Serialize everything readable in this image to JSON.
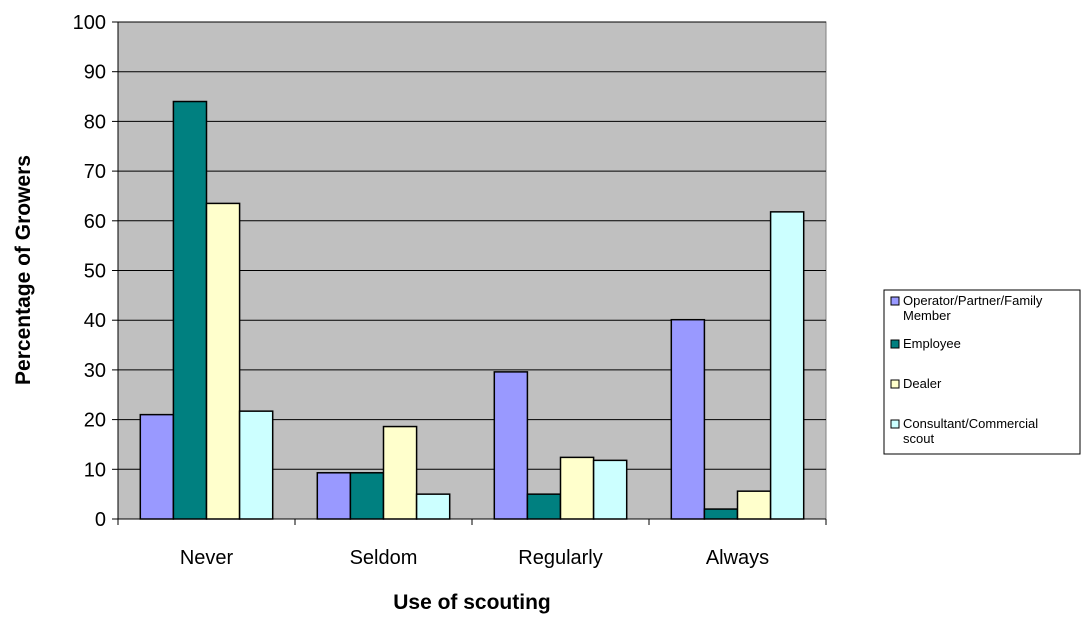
{
  "chart_data": {
    "type": "bar",
    "title": "",
    "xlabel": "Use of scouting",
    "ylabel": "Percentage of Growers",
    "ylim": [
      0,
      100
    ],
    "yticks": [
      0,
      10,
      20,
      30,
      40,
      50,
      60,
      70,
      80,
      90,
      100
    ],
    "grid": true,
    "legend_position": "right",
    "categories": [
      "Never",
      "Seldom",
      "Regularly",
      "Always"
    ],
    "series": [
      {
        "name": "Operator/Partner/Family Member",
        "color": "#9999ff",
        "values": [
          21,
          9.3,
          29.6,
          40.1
        ]
      },
      {
        "name": "Employee",
        "color": "#008080",
        "values": [
          84,
          9.3,
          5,
          2
        ]
      },
      {
        "name": "Dealer",
        "color": "#ffffcc",
        "values": [
          63.5,
          18.6,
          12.4,
          5.6
        ]
      },
      {
        "name": "Consultant/Commercial scout",
        "color": "#ccffff",
        "values": [
          21.7,
          5,
          11.8,
          61.8
        ]
      }
    ],
    "plot_background": "#c0c0c0"
  }
}
